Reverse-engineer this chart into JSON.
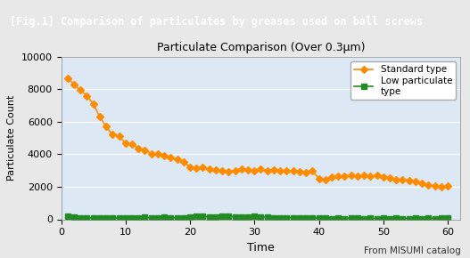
{
  "title": "Particulate Comparison (Over 0.3μm)",
  "header": "[Fig.1] Comparison of particulates by greases used on ball screws",
  "xlabel": "Time",
  "ylabel": "Particulate Count",
  "footer": "From MISUMI catalog",
  "xlim": [
    0,
    62
  ],
  "ylim": [
    0,
    10000
  ],
  "yticks": [
    0,
    2000,
    4000,
    6000,
    8000,
    10000
  ],
  "xticks": [
    0,
    10,
    20,
    30,
    40,
    50,
    60
  ],
  "plot_bg": "#dce9f5",
  "outer_bg": "#e8e8e8",
  "header_bg": "#1a1a1a",
  "header_fg": "#ffffff",
  "standard_color": "#ff8c00",
  "low_color": "#228B22",
  "standard_x": [
    1,
    2,
    3,
    4,
    5,
    6,
    7,
    8,
    9,
    10,
    11,
    12,
    13,
    14,
    15,
    16,
    17,
    18,
    19,
    20,
    21,
    22,
    23,
    24,
    25,
    26,
    27,
    28,
    29,
    30,
    31,
    32,
    33,
    34,
    35,
    36,
    37,
    38,
    39,
    40,
    41,
    42,
    43,
    44,
    45,
    46,
    47,
    48,
    49,
    50,
    51,
    52,
    53,
    54,
    55,
    56,
    57,
    58,
    59,
    60
  ],
  "standard_y": [
    8700,
    8300,
    7950,
    7600,
    7100,
    6300,
    5700,
    5200,
    5100,
    4700,
    4650,
    4350,
    4250,
    4050,
    4000,
    3900,
    3800,
    3700,
    3550,
    3200,
    3150,
    3200,
    3100,
    3050,
    3000,
    2950,
    3000,
    3100,
    3050,
    3000,
    3100,
    3000,
    3050,
    3000,
    2980,
    3000,
    2950,
    2900,
    2980,
    2500,
    2450,
    2600,
    2650,
    2650,
    2700,
    2650,
    2700,
    2650,
    2700,
    2600,
    2550,
    2450,
    2450,
    2400,
    2300,
    2200,
    2100,
    2050,
    2000,
    2050
  ],
  "low_x": [
    1,
    2,
    3,
    4,
    5,
    6,
    7,
    8,
    9,
    10,
    11,
    12,
    13,
    14,
    15,
    16,
    17,
    18,
    19,
    20,
    21,
    22,
    23,
    24,
    25,
    26,
    27,
    28,
    29,
    30,
    31,
    32,
    33,
    34,
    35,
    36,
    37,
    38,
    39,
    40,
    41,
    42,
    43,
    44,
    45,
    46,
    47,
    48,
    49,
    50,
    51,
    52,
    53,
    54,
    55,
    56,
    57,
    58,
    59,
    60
  ],
  "low_y": [
    200,
    150,
    100,
    80,
    80,
    80,
    70,
    80,
    70,
    80,
    60,
    80,
    120,
    100,
    80,
    120,
    100,
    80,
    100,
    150,
    200,
    180,
    150,
    120,
    200,
    180,
    150,
    130,
    150,
    200,
    150,
    120,
    100,
    80,
    100,
    100,
    80,
    100,
    80,
    70,
    60,
    50,
    60,
    50,
    60,
    60,
    50,
    60,
    50,
    60,
    50,
    60,
    50,
    50,
    60,
    50,
    60,
    50,
    60,
    60
  ]
}
